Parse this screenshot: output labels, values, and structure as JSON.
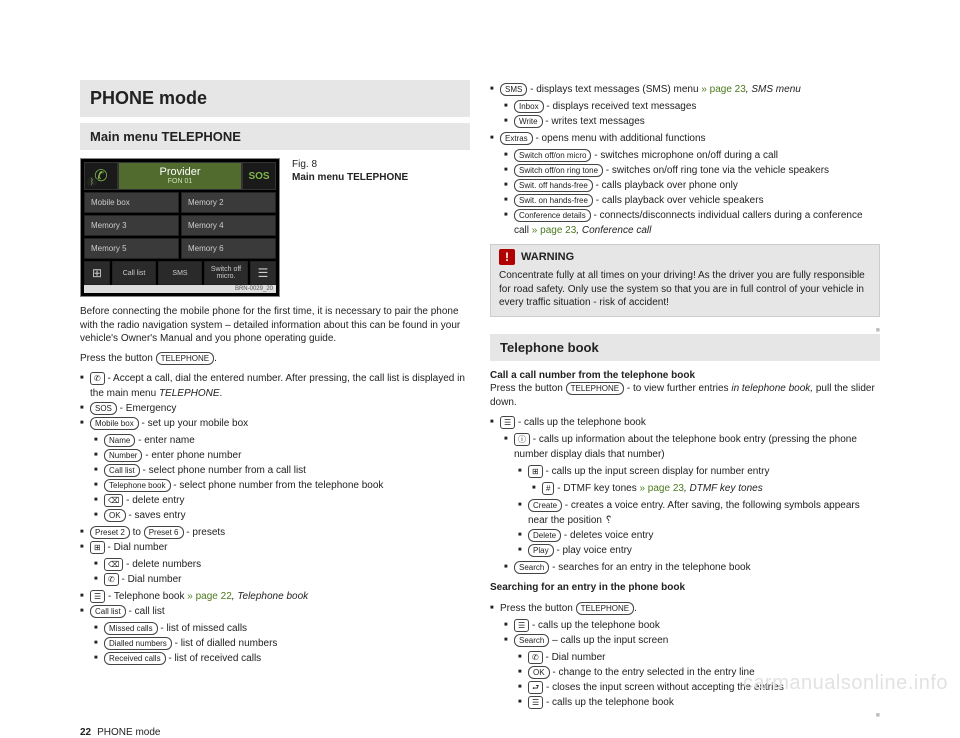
{
  "title": "PHONE mode",
  "section1": "Main menu TELEPHONE",
  "fig": {
    "num": "Fig. 8",
    "caption": "Main menu TELEPHONE"
  },
  "device": {
    "provider": "Provider",
    "sub": "FON 01",
    "sos": "SOS",
    "grid": [
      "Mobile box",
      "Memory 2",
      "Memory 3",
      "Memory 4",
      "Memory 5",
      "Memory 6"
    ],
    "bottom": {
      "calllist": "Call list",
      "sms": "SMS",
      "switch": "Switch off micro."
    },
    "code": "BRN-0029_20"
  },
  "p1": "Before connecting the mobile phone for the first time, it is necessary to pair the phone with the radio navigation system – detailed information about this can be found in your vehicle's Owner's Manual and you phone operating guide.",
  "p2a": "Press the button ",
  "keys": {
    "telephone": "TELEPHONE",
    "sos": "SOS",
    "mobilebox": "Mobile box",
    "name": "Name",
    "number": "Number",
    "calllist": "Call list",
    "telephonebook": "Telephone book",
    "delete": "m",
    "ok": "OK",
    "preset2": "Preset 2",
    "preset6": "Preset 6",
    "missed": "Missed calls",
    "dialled": "Dialled numbers",
    "received": "Received calls",
    "sms": "SMS",
    "inbox": "Inbox",
    "write": "Write",
    "extras": "Extras",
    "swmicro": "Switch off/on micro",
    "swring": "Switch off/on ring tone",
    "swoffhf": "Swit. off hands-free",
    "swonhf": "Swit. on hands-free",
    "confd": "Conference details",
    "create": "Create",
    "deleteV": "Delete",
    "play": "Play",
    "search": "Search"
  },
  "left": {
    "accept": " - Accept a call, dial the entered number. After pressing, the call list is displayed in the main menu ",
    "telEm": "TELEPHONE",
    "sos": " - Emergency",
    "mb": " - set up your mobile box",
    "name": " - enter name",
    "number": " - enter phone number",
    "cl": " - select phone number from a call list",
    "tb": " - select phone number from the telephone book",
    "del": " - delete entry",
    "ok": " - saves entry",
    "presets_to": " to ",
    "presets_end": " - presets",
    "dial": " - Dial number",
    "deln": " - delete numbers",
    "dialn": " - Dial number",
    "tbk": " - Telephone book ",
    "tbk_ref": "» page 22",
    "tbk_em": ", Telephone book",
    "calllist": " - call list",
    "missed": " - list of missed calls",
    "dialled": " - list of dialled numbers",
    "received": " - list of received calls"
  },
  "right": {
    "sms_a": " - displays text messages (SMS) menu ",
    "sms_ref": "» page 23",
    "sms_em": ", SMS menu",
    "inbox": " - displays received text messages",
    "write": " - writes text messages",
    "extras": " - opens menu with additional functions",
    "micro": " - switches microphone on/off during a call",
    "ring": " - switches on/off ring tone via the vehicle speakers",
    "hfoff": " - calls playback over phone only",
    "hfon": " - calls playback over vehicle speakers",
    "conf_a": " - connects/disconnects individual callers during a conference call ",
    "conf_ref": "» page 23",
    "conf_em": ", Conference call",
    "warn_h": "WARNING",
    "warn_b": "Concentrate fully at all times on your driving! As the driver you are fully responsible for road safety. Only use the system so that you are in full control of your vehicle in every traffic situation - risk of accident!",
    "sec2": "Telephone book",
    "call_h": "Call a call number from the telephone book",
    "call_a": "Press the button ",
    "call_b": " - to view further entries ",
    "call_em": "in telephone book,",
    "call_c": " pull the slider down.",
    "tb1": " - calls up the telephone book",
    "tb2": " - calls up information about the telephone book entry (pressing the phone number display dials that number)",
    "tb3": " - calls up the input screen display for number entry",
    "tb4_a": " - DTMF key tones ",
    "tb4_ref": "» page 23",
    "tb4_em": ", DTMF key tones",
    "tb5_a": " - creates a voice entry. After saving, the following symbols appears near the position ",
    "tb6": " - deletes voice entry",
    "tb7": " - play voice entry",
    "tb8": " - searches for an entry in the telephone book",
    "srch_h": "Searching for an entry in the phone book",
    "s1": "Press the button ",
    "s2": " - calls up the telephone book",
    "s3": " – calls up the input screen",
    "s4": " - Dial number",
    "s5": " - change to the entry selected in the entry line",
    "s6": " - closes the input screen without accepting the entries",
    "s7": " - calls up the telephone book"
  },
  "footer": {
    "page": "22",
    "label": "PHONE mode"
  },
  "watermark": "carmanualsonline.info"
}
